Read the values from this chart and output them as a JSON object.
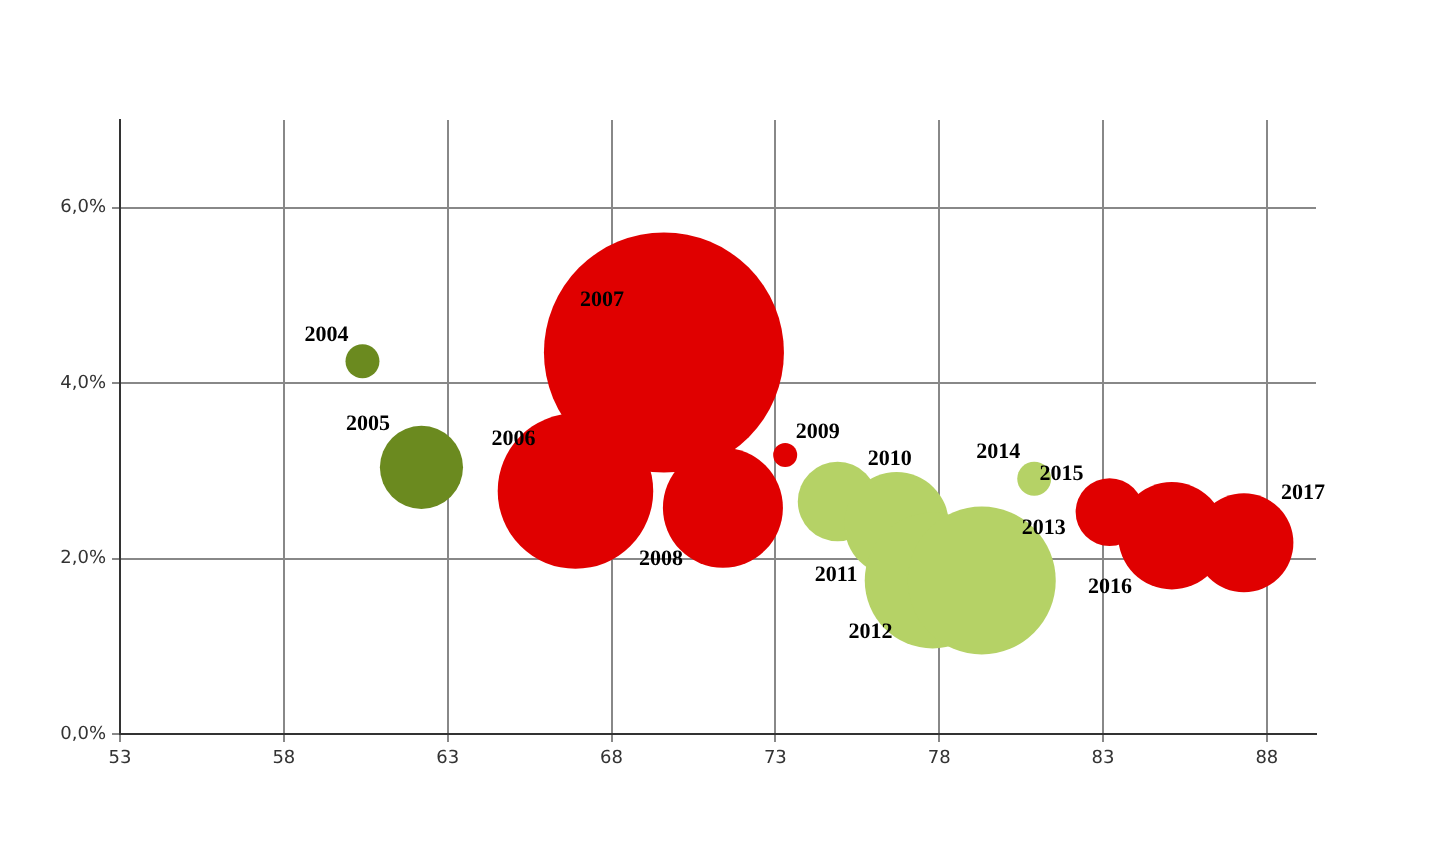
{
  "chart_data": {
    "type": "bubble",
    "x": [
      60.4,
      62.2,
      66.9,
      69.6,
      71.4,
      73.3,
      74.9,
      76.7,
      77.8,
      79.3,
      80.9,
      83.2,
      85.1,
      87.3
    ],
    "values": [
      4.25,
      3.04,
      2.77,
      4.35,
      2.58,
      3.18,
      2.65,
      2.39,
      1.75,
      1.75,
      2.91,
      2.53,
      2.26,
      2.18
    ],
    "sizes": [
      0.02,
      0.12,
      0.42,
      1,
      0.25,
      0.01,
      0.11,
      0.19,
      0.32,
      0.38,
      0.02,
      0.08,
      0.2,
      0.17
    ],
    "colors": [
      "#6b8a1f",
      "#6b8a1f",
      "#e00000",
      "#e00000",
      "#e00000",
      "#e00000",
      "#b5d266",
      "#b5d266",
      "#b5d266",
      "#b5d266",
      "#b5d266",
      "#e00000",
      "#e00000",
      "#e00000"
    ],
    "annotations": [
      {
        "text": "2004",
        "x": 60.4,
        "y": 4.25
      },
      {
        "text": "2005",
        "x": 62.2,
        "y": 3.04
      },
      {
        "text": "2006",
        "x": 66.9,
        "y": 2.77
      },
      {
        "text": "2007",
        "x": 69.6,
        "y": 4.35
      },
      {
        "text": "2008",
        "x": 71.4,
        "y": 2.58
      },
      {
        "text": "2009",
        "x": 73.3,
        "y": 3.18
      },
      {
        "text": "2010",
        "x": 74.9,
        "y": 2.65
      },
      {
        "text": "2011",
        "x": 76.7,
        "y": 2.39
      },
      {
        "text": "2012",
        "x": 77.8,
        "y": 1.75
      },
      {
        "text": "2013",
        "x": 79.3,
        "y": 1.75
      },
      {
        "text": "2014",
        "x": 80.9,
        "y": 2.91
      },
      {
        "text": "2015",
        "x": 83.2,
        "y": 2.53
      },
      {
        "text": "2016",
        "x": 85.1,
        "y": 2.26
      },
      {
        "text": "2017",
        "x": 87.3,
        "y": 2.18
      }
    ],
    "xlim": [
      53,
      89.5
    ],
    "xticks": [
      53,
      58,
      63,
      68,
      73,
      78,
      83,
      88
    ],
    "ylim": [
      0,
      7
    ],
    "yticks": [
      {
        "value": 0,
        "label": "0,0%"
      },
      {
        "value": 2,
        "label": "2,0%"
      },
      {
        "value": 4,
        "label": "4,0%"
      },
      {
        "value": 6,
        "label": "6,0%"
      }
    ],
    "grid": true,
    "legend": false
  }
}
